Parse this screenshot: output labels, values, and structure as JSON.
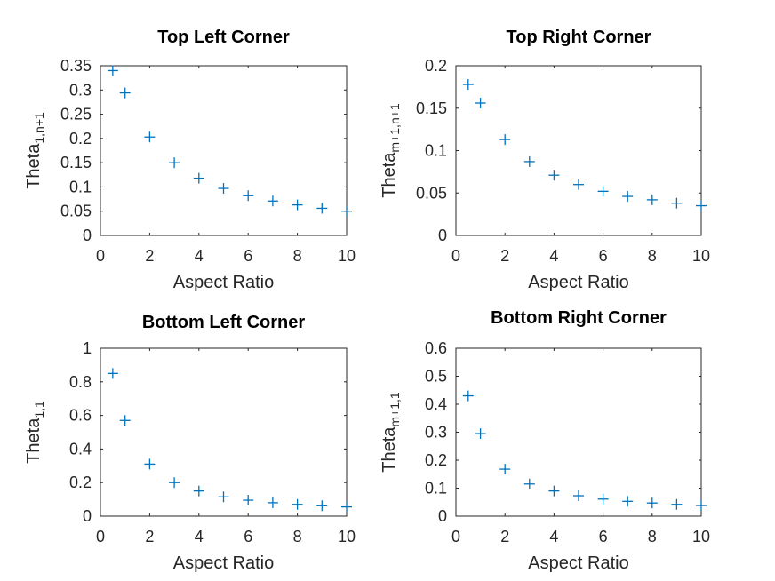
{
  "chart_data": [
    {
      "type": "scatter",
      "title": "Top Left Corner",
      "xlabel": "Aspect Ratio",
      "ylabel": {
        "base": "Theta",
        "sub": "1,n+1"
      },
      "xlim": [
        0,
        10
      ],
      "ylim": [
        0,
        0.35
      ],
      "xticks": [
        "0",
        "2",
        "4",
        "6",
        "8",
        "10"
      ],
      "yticks": [
        "0",
        "0.05",
        "0.1",
        "0.15",
        "0.2",
        "0.25",
        "0.3",
        "0.35"
      ],
      "marker": "+",
      "color": "#0072BD",
      "x": [
        0.5,
        1,
        2,
        3,
        4,
        5,
        6,
        7,
        8,
        9,
        10
      ],
      "y": [
        0.34,
        0.294,
        0.203,
        0.15,
        0.118,
        0.097,
        0.082,
        0.071,
        0.063,
        0.056,
        0.05
      ]
    },
    {
      "type": "scatter",
      "title": "Top Right Corner",
      "xlabel": "Aspect Ratio",
      "ylabel": {
        "base": "Theta",
        "sub": "m+1,n+1"
      },
      "xlim": [
        0,
        10
      ],
      "ylim": [
        0,
        0.2
      ],
      "xticks": [
        "0",
        "2",
        "4",
        "6",
        "8",
        "10"
      ],
      "yticks": [
        "0",
        "0.05",
        "0.1",
        "0.15",
        "0.2"
      ],
      "marker": "+",
      "color": "#0072BD",
      "x": [
        0.5,
        1,
        2,
        3,
        4,
        5,
        6,
        7,
        8,
        9,
        10
      ],
      "y": [
        0.178,
        0.156,
        0.113,
        0.087,
        0.071,
        0.06,
        0.052,
        0.046,
        0.042,
        0.038,
        0.035
      ]
    },
    {
      "type": "scatter",
      "title": "Bottom Left Corner",
      "xlabel": "Aspect Ratio",
      "ylabel": {
        "base": "Theta",
        "sub": "1,1"
      },
      "xlim": [
        0,
        10
      ],
      "ylim": [
        0,
        1
      ],
      "xticks": [
        "0",
        "2",
        "4",
        "6",
        "8",
        "10"
      ],
      "yticks": [
        "0",
        "0.2",
        "0.4",
        "0.6",
        "0.8",
        "1"
      ],
      "marker": "+",
      "color": "#0072BD",
      "x": [
        0.5,
        1,
        2,
        3,
        4,
        5,
        6,
        7,
        8,
        9,
        10
      ],
      "y": [
        0.85,
        0.57,
        0.31,
        0.2,
        0.15,
        0.115,
        0.095,
        0.08,
        0.07,
        0.062,
        0.055
      ]
    },
    {
      "type": "scatter",
      "title": "Bottom Right Corner",
      "xlabel": "Aspect Ratio",
      "ylabel": {
        "base": "Theta",
        "sub": "m+1,1"
      },
      "xlim": [
        0,
        10
      ],
      "ylim": [
        0,
        0.6
      ],
      "xticks": [
        "0",
        "2",
        "4",
        "6",
        "8",
        "10"
      ],
      "yticks": [
        "0",
        "0.1",
        "0.2",
        "0.3",
        "0.4",
        "0.5",
        "0.6"
      ],
      "marker": "+",
      "color": "#0072BD",
      "x": [
        0.5,
        1,
        2,
        3,
        4,
        5,
        6,
        7,
        8,
        9,
        10
      ],
      "y": [
        0.43,
        0.295,
        0.168,
        0.115,
        0.09,
        0.073,
        0.061,
        0.053,
        0.047,
        0.042,
        0.038
      ]
    }
  ]
}
